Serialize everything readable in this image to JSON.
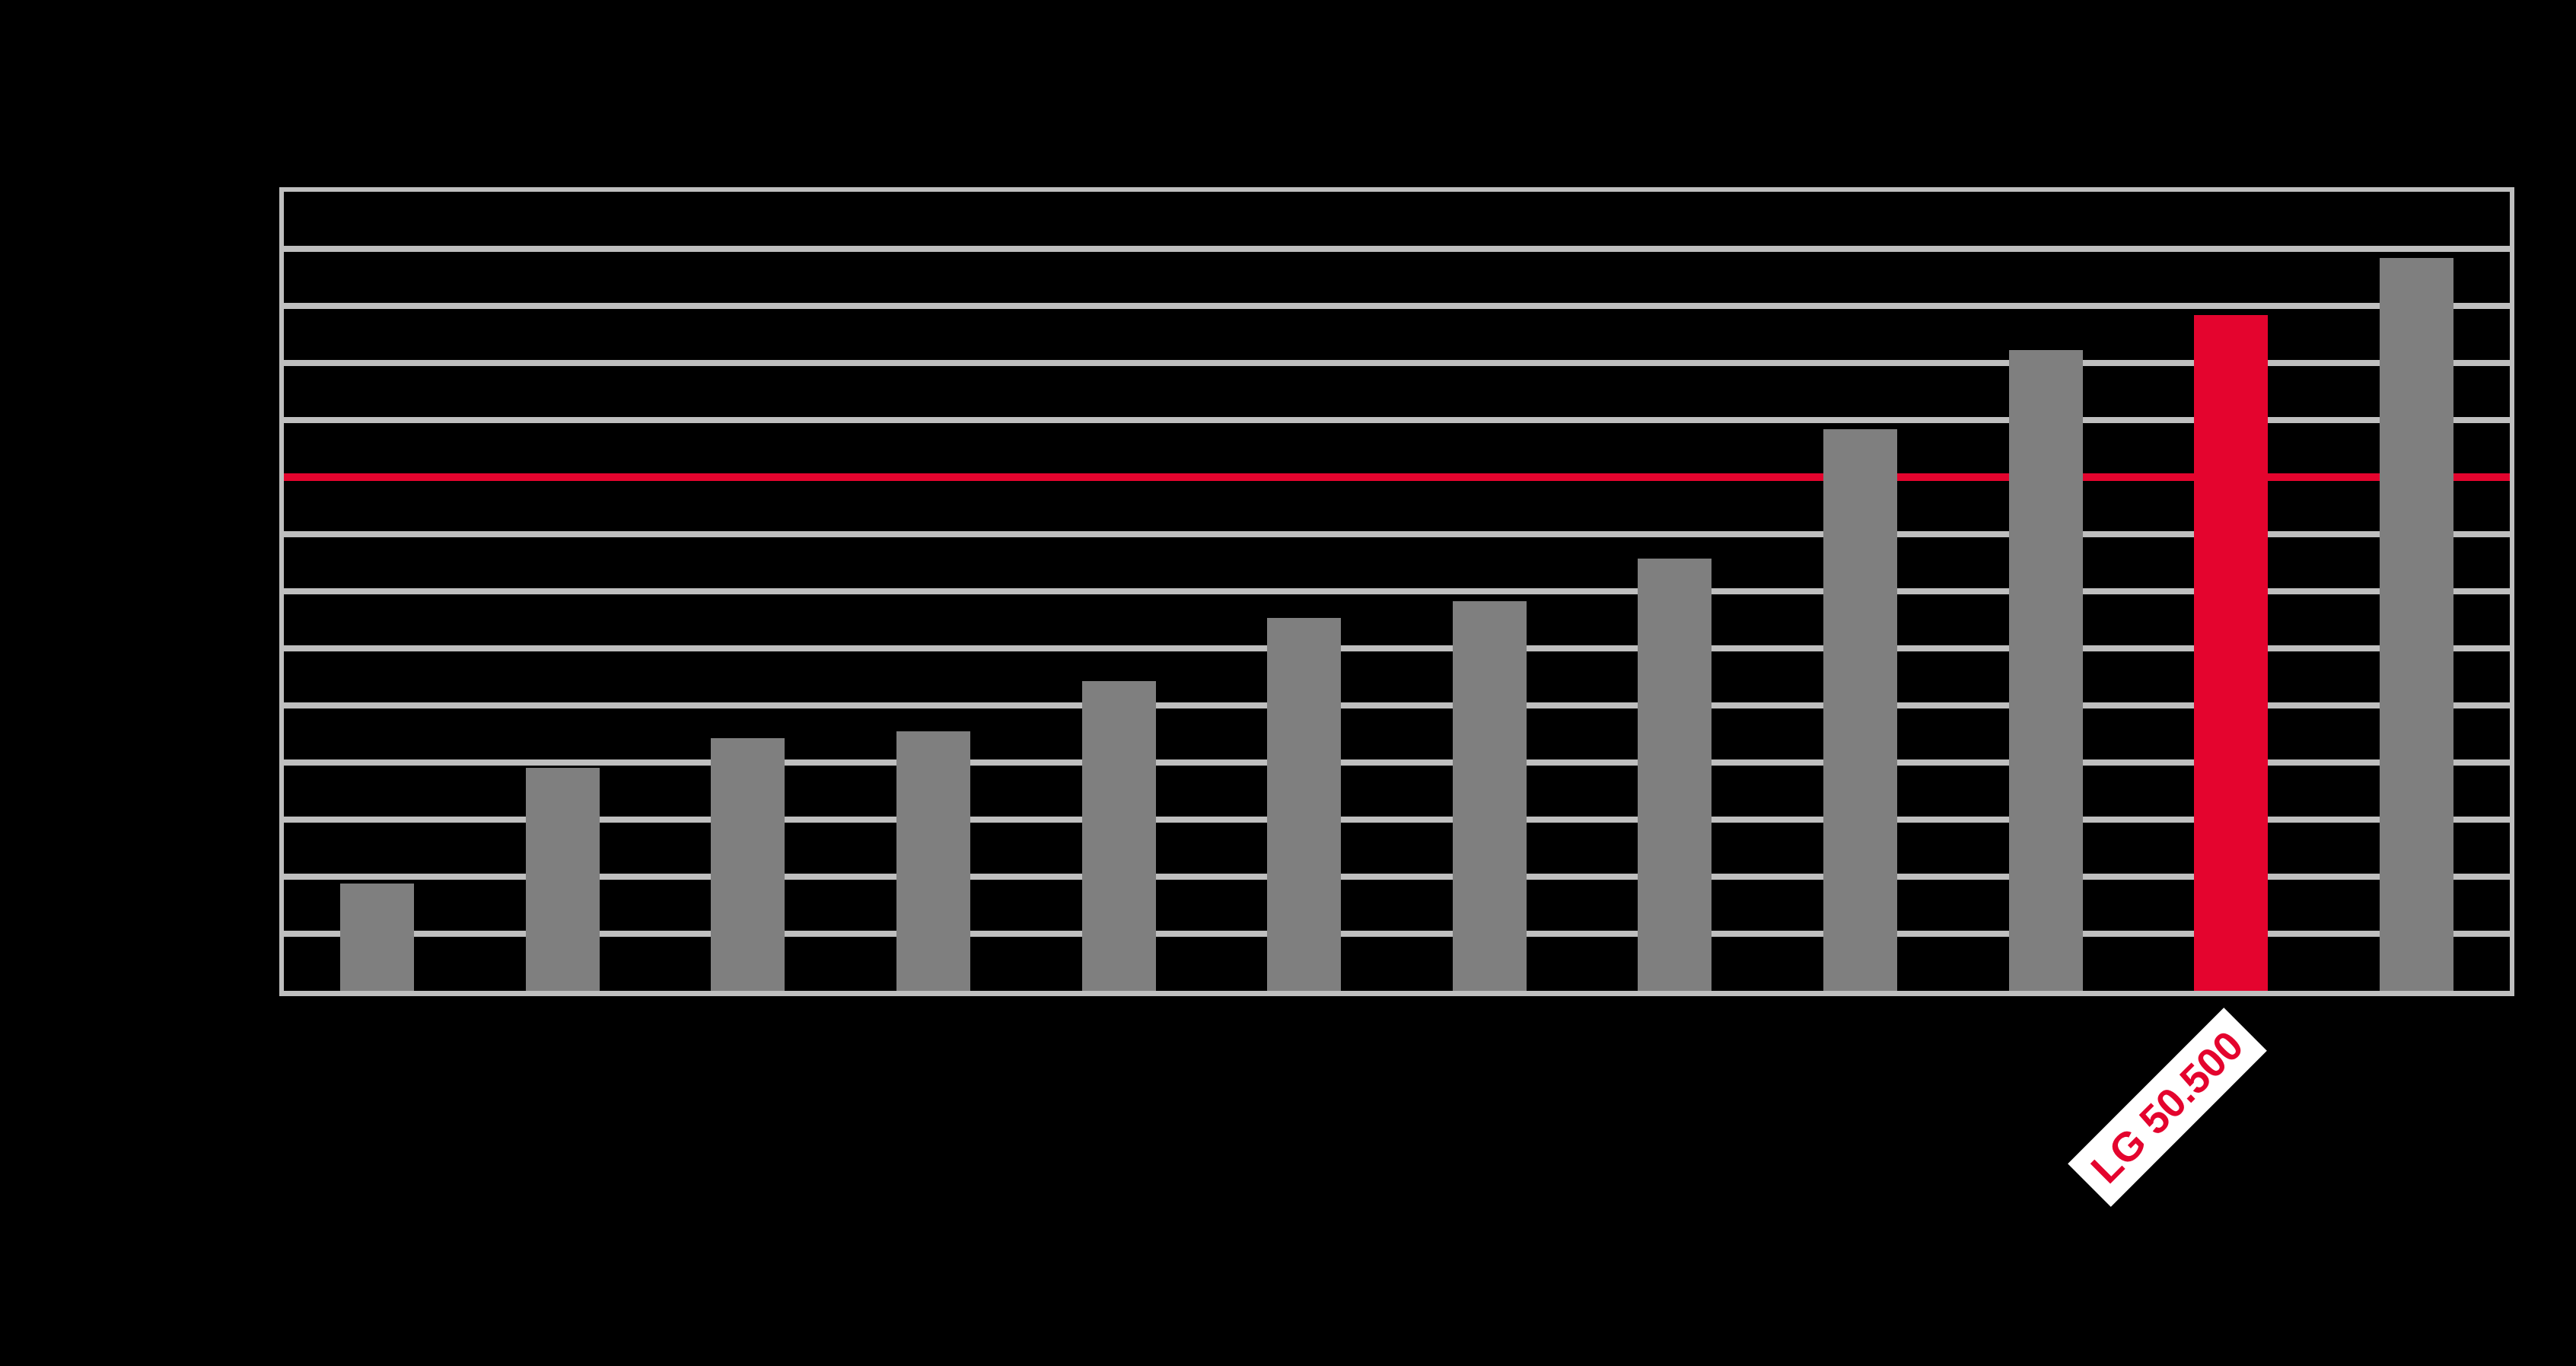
{
  "chart_data": {
    "type": "bar",
    "title": "",
    "categories": [
      "",
      "",
      "",
      "",
      "",
      "",
      "",
      "",
      "",
      "",
      "LG 50.500",
      ""
    ],
    "values_grid_units": [
      1.88,
      3.91,
      4.43,
      4.55,
      5.43,
      6.53,
      6.83,
      7.57,
      9.84,
      11.23,
      11.84,
      12.84
    ],
    "estimated_values": [
      8000,
      16700,
      18900,
      19400,
      23150,
      27850,
      29150,
      32300,
      41950,
      47900,
      50500,
      54750
    ],
    "highlight": {
      "index": 10,
      "label": "LG 50.500",
      "estimated_value": 50500
    },
    "reference_line": {
      "grid_units_from_bottom": 9,
      "estimated_value": 38400
    },
    "y_axis": {
      "gridline_intervals": 14,
      "tick_labels_visible": false
    },
    "x_axis": {
      "tick_labels_visible": false,
      "visible_label_count": 1
    },
    "legend": "none",
    "grid": true,
    "colors": {
      "background": "#000000",
      "bar": "#7f7f7f",
      "highlight_bar": "#e4042e",
      "reference_line": "#e4042e",
      "gridline": "#bfbfbf",
      "frame": "#bfbfbf",
      "highlight_label_text": "#e4042e",
      "highlight_label_background": "#ffffff"
    }
  }
}
